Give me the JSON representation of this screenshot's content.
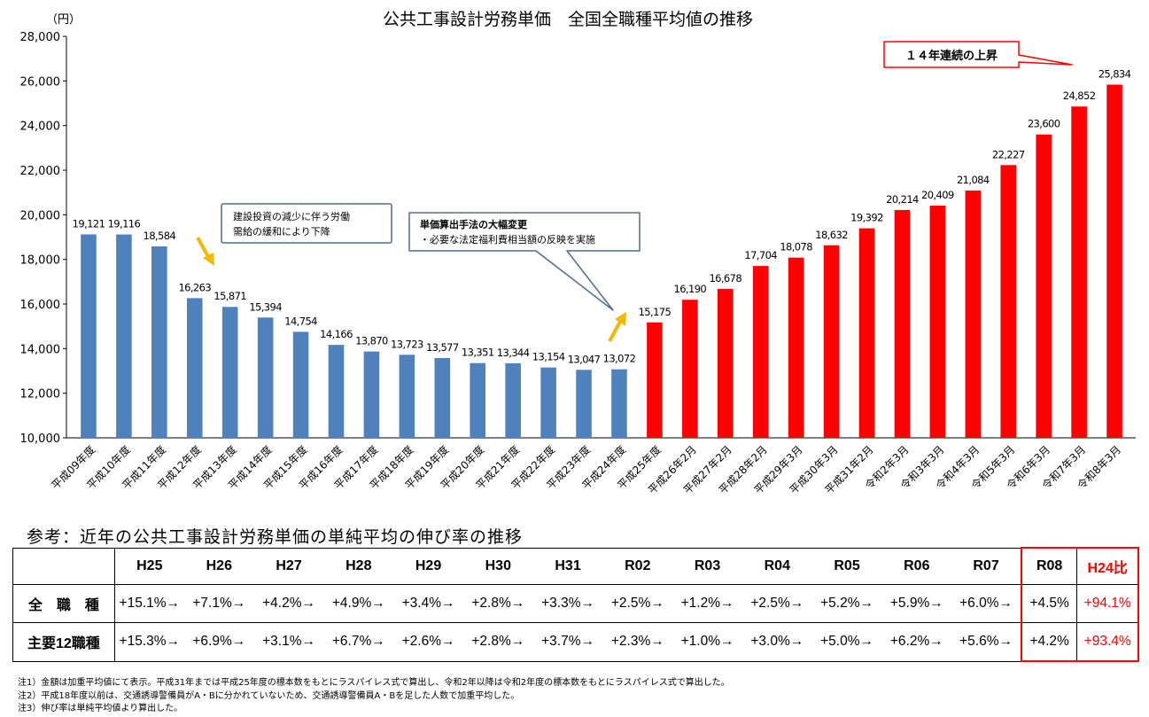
{
  "chart_data": {
    "type": "bar",
    "title": "公共工事設計労務単価　全国全職種平均値の推移",
    "ylabel": "（円）",
    "ylim": [
      10000,
      28000
    ],
    "yticks": [
      "10,000",
      "12,000",
      "14,000",
      "16,000",
      "18,000",
      "20,000",
      "22,000",
      "24,000",
      "26,000",
      "28,000"
    ],
    "grid": false,
    "categories": [
      "平成09年度",
      "平成10年度",
      "平成11年度",
      "平成12年度",
      "平成13年度",
      "平成14年度",
      "平成15年度",
      "平成16年度",
      "平成17年度",
      "平成18年度",
      "平成19年度",
      "平成20年度",
      "平成21年度",
      "平成22年度",
      "平成23年度",
      "平成24年度",
      "平成25年度",
      "平成26年2月",
      "平成27年2月",
      "平成28年2月",
      "平成29年3月",
      "平成30年3月",
      "平成31年2月",
      "令和2年3月",
      "令和3年3月",
      "令和4年3月",
      "令和5年3月",
      "令和6年3月",
      "令和7年3月",
      "令和8年3月"
    ],
    "values": [
      19121,
      19116,
      18584,
      16263,
      15871,
      15394,
      14754,
      14166,
      13870,
      13723,
      13577,
      13351,
      13344,
      13154,
      13047,
      13072,
      15175,
      16190,
      16678,
      17704,
      18078,
      18632,
      19392,
      20214,
      20409,
      21084,
      22227,
      23600,
      24852,
      25834
    ],
    "value_labels": [
      "19,121",
      "19,116",
      "18,584",
      "16,263",
      "15,871",
      "15,394",
      "14,754",
      "14,166",
      "13,870",
      "13,723",
      "13,577",
      "13,351",
      "13,344",
      "13,154",
      "13,047",
      "13,072",
      "15,175",
      "16,190",
      "16,678",
      "17,704",
      "18,078",
      "18,632",
      "19,392",
      "20,214",
      "20,409",
      "21,084",
      "22,227",
      "23,600",
      "24,852",
      "25,834"
    ],
    "colors": {
      "decline": "#4f81bd",
      "rise": "#ff0000"
    },
    "annotations": {
      "decline_note": [
        "建設投資の減少に伴う労働",
        "需給の緩和により下降"
      ],
      "method_note_title": "単価算出手法の大幅変更",
      "method_note_body": "・必要な法定福利費相当額の反映を実施",
      "banner": "１４年連続の上昇"
    }
  },
  "reference": {
    "title": "参考：近年の公共工事設計労務単価の単純平均の伸び率の推移",
    "headers": [
      "H25",
      "H26",
      "H27",
      "H28",
      "H29",
      "H30",
      "H31",
      "R02",
      "R03",
      "R04",
      "R05",
      "R06",
      "R07",
      "R08",
      "H24比"
    ],
    "rows": [
      {
        "label": "全　職　種",
        "values": [
          "+15.1%→",
          "+7.1%→",
          "+4.2%→",
          "+4.9%→",
          "+3.4%→",
          "+2.8%→",
          "+3.3%→",
          "+2.5%→",
          "+1.2%→",
          "+2.5%→",
          "+5.2%→",
          "+5.9%→",
          "+6.0%→",
          "+4.5%",
          "+94.1%"
        ]
      },
      {
        "label": "主要12職種",
        "values": [
          "+15.3%→",
          "+6.9%→",
          "+3.1%→",
          "+6.7%→",
          "+2.6%→",
          "+2.8%→",
          "+3.7%→",
          "+2.3%→",
          "+1.0%→",
          "+3.0%→",
          "+5.0%→",
          "+6.2%→",
          "+5.6%→",
          "+4.2%",
          "+93.4%"
        ]
      }
    ]
  },
  "notes": [
    "注1）金額は加重平均値にて表示。平成31年までは平成25年度の標本数をもとにラスパイレス式で算出し、令和2年以降は令和2年度の標本数をもとにラスパイレス式で算出した。",
    "注2）平成18年度以前は、交通誘導警備員がA・Bに分かれていないため、交通誘導警備員A・Bを足した人数で加重平均した。",
    "注3）伸び率は単純平均値より算出した。"
  ]
}
